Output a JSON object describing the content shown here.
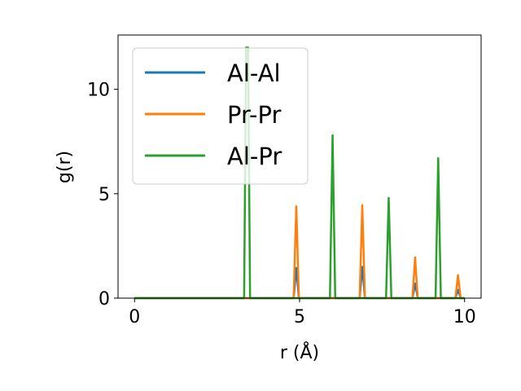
{
  "chart_data": {
    "type": "line",
    "title": "",
    "xlabel": "r (Å)",
    "ylabel": "g(r)",
    "xlim": [
      -0.5,
      10.5
    ],
    "ylim": [
      0,
      12.6
    ],
    "xticks": [
      0,
      5,
      10
    ],
    "xtick_labels": [
      "0",
      "5",
      "10"
    ],
    "yticks": [
      0,
      5,
      10
    ],
    "ytick_labels": [
      "0",
      "5",
      "10"
    ],
    "grid": false,
    "legend_position": "top-left",
    "series": [
      {
        "name": "Al-Al",
        "color": "#1f77b4",
        "x": [
          0,
          4.82,
          4.9,
          4.98,
          6.82,
          6.9,
          6.98,
          8.42,
          8.5,
          8.58,
          9.72,
          9.8,
          9.88,
          10
        ],
        "y": [
          0,
          0,
          1.45,
          0,
          0,
          1.5,
          0,
          0,
          0.7,
          0,
          0,
          0.4,
          0,
          0
        ]
      },
      {
        "name": "Pr-Pr",
        "color": "#ff7f0e",
        "x": [
          0,
          4.82,
          4.9,
          4.98,
          6.82,
          6.9,
          6.98,
          8.42,
          8.5,
          8.58,
          9.72,
          9.8,
          9.88,
          10
        ],
        "y": [
          0,
          0,
          4.4,
          0,
          0,
          4.45,
          0,
          0,
          1.95,
          0,
          0,
          1.1,
          0,
          0
        ]
      },
      {
        "name": "Al-Pr",
        "color": "#2ca02c",
        "x": [
          0,
          3.32,
          3.38,
          3.44,
          3.5,
          5.92,
          6.0,
          6.08,
          7.62,
          7.7,
          7.78,
          9.12,
          9.2,
          9.28,
          10
        ],
        "y": [
          0,
          0,
          12.0,
          12.0,
          0,
          0,
          7.8,
          0,
          0,
          4.8,
          0,
          0,
          6.7,
          0,
          0
        ]
      }
    ]
  }
}
